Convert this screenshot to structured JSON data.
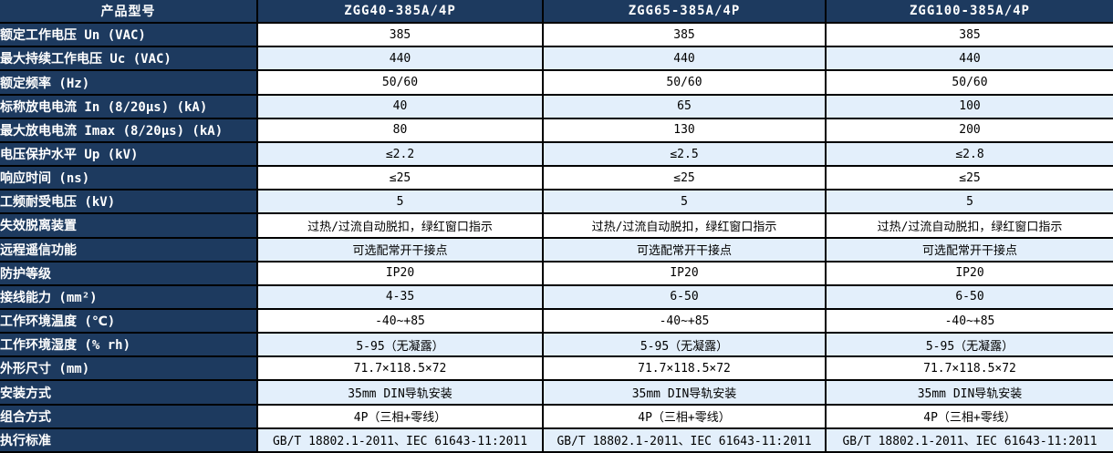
{
  "colors": {
    "header_background": "#1d3a5f",
    "label_background": "#1d3a5f",
    "alt_row_background": "#e3effb",
    "row_background": "#ffffff",
    "border": "#000000",
    "label_text": "#ffffff",
    "value_text": "#000000"
  },
  "table": {
    "header": {
      "label_col": "产品型号",
      "products": [
        "ZGG40-385A/4P",
        "ZGG65-385A/4P",
        "ZGG100-385A/4P"
      ]
    },
    "rows": [
      {
        "label": "额定工作电压 Un (VAC)",
        "values": [
          "385",
          "385",
          "385"
        ]
      },
      {
        "label": "最大持续工作电压 Uc (VAC)",
        "values": [
          "440",
          "440",
          "440"
        ]
      },
      {
        "label": "额定频率 (Hz)",
        "values": [
          "50/60",
          "50/60",
          "50/60"
        ]
      },
      {
        "label": "标称放电电流 In (8/20μs) (kA)",
        "values": [
          "40",
          "65",
          "100"
        ]
      },
      {
        "label": "最大放电电流 Imax (8/20μs) (kA)",
        "values": [
          "80",
          "130",
          "200"
        ]
      },
      {
        "label": "电压保护水平 Up (kV)",
        "values": [
          "≤2.2",
          "≤2.5",
          "≤2.8"
        ]
      },
      {
        "label": "响应时间 (ns)",
        "values": [
          "≤25",
          "≤25",
          "≤25"
        ]
      },
      {
        "label": "工频耐受电压 (kV)",
        "values": [
          "5",
          "5",
          "5"
        ]
      },
      {
        "label": "失效脱离装置",
        "values": [
          "过热/过流自动脱扣，绿红窗口指示",
          "过热/过流自动脱扣，绿红窗口指示",
          "过热/过流自动脱扣，绿红窗口指示"
        ]
      },
      {
        "label": "远程遥信功能",
        "values": [
          "可选配常开干接点",
          "可选配常开干接点",
          "可选配常开干接点"
        ]
      },
      {
        "label": "防护等级",
        "values": [
          "IP20",
          "IP20",
          "IP20"
        ]
      },
      {
        "label": "接线能力 (mm²)",
        "values": [
          "4-35",
          "6-50",
          "6-50"
        ]
      },
      {
        "label": "工作环境温度 (℃)",
        "values": [
          "-40~+85",
          "-40~+85",
          "-40~+85"
        ]
      },
      {
        "label": "工作环境湿度 (% rh)",
        "values": [
          "5-95（无凝露）",
          "5-95（无凝露）",
          "5-95（无凝露）"
        ]
      },
      {
        "label": "外形尺寸 (mm)",
        "values": [
          "71.7×118.5×72",
          "71.7×118.5×72",
          "71.7×118.5×72"
        ]
      },
      {
        "label": "安装方式",
        "values": [
          "35mm DIN导轨安装",
          "35mm DIN导轨安装",
          "35mm DIN导轨安装"
        ]
      },
      {
        "label": "组合方式",
        "values": [
          "4P（三相+零线）",
          "4P（三相+零线）",
          "4P（三相+零线）"
        ]
      },
      {
        "label": "执行标准",
        "values": [
          "GB/T 18802.1-2011、IEC 61643-11:2011",
          "GB/T 18802.1-2011、IEC 61643-11:2011",
          "GB/T 18802.1-2011、IEC 61643-11:2011"
        ]
      }
    ]
  }
}
